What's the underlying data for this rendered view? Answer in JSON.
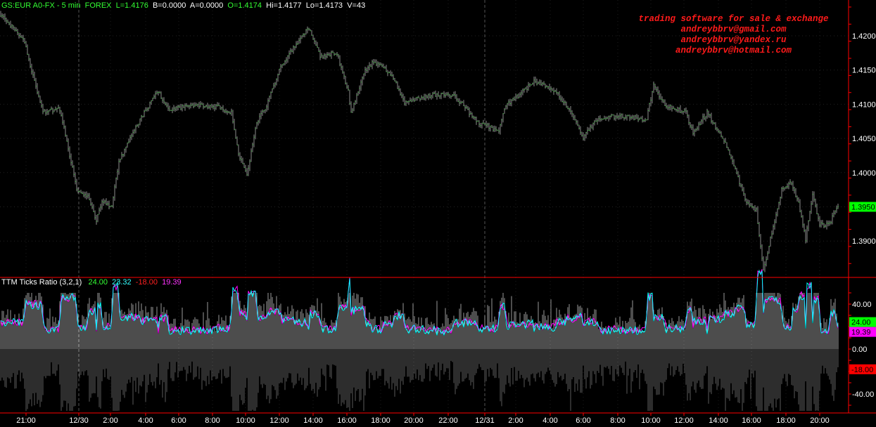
{
  "header": {
    "symbol": "GS:EUR A0-FX - 5 min",
    "market": "FOREX",
    "last": "L=1.4176",
    "bid": "B=0.0000",
    "ask": "A=0.0000",
    "open": "O=1.4174",
    "high": "Hi=1.4177",
    "low": "Lo=1.4173",
    "volume": "V=43"
  },
  "watermark": {
    "line1": "trading software for sale & exchange",
    "line2": "andreybbrv@gmail.com",
    "line3": "andreybbrv@yandex.ru",
    "line4": "andreybbrv@hotmail.com"
  },
  "indicator": {
    "name": "TTM Ticks Ratio (3,2,1)",
    "v1": "24.00",
    "v2": "23.32",
    "v3": "-18.00",
    "v4": "19.39"
  },
  "colors": {
    "axis": "#ff0000",
    "bars": "#8c8c8c",
    "bar_ticks": "#33cc33",
    "line1": "#00ffff",
    "line2": "#ff00ff",
    "last_badge": "#00ff00",
    "neg_badge": "#ff0000"
  },
  "chart_data": [
    {
      "type": "ohlc",
      "ylim": [
        1.385,
        1.424
      ],
      "yticks": [
        "1.4200",
        "1.4150",
        "1.4100",
        "1.4050",
        "1.4000",
        "1.3950",
        "1.3900"
      ],
      "last_price": "1.3950",
      "xticks": [
        "21:00",
        "12/30",
        "2:00",
        "4:00",
        "6:00",
        "8:00",
        "10:00",
        "12:00",
        "14:00",
        "16:00",
        "18:00",
        "20:00",
        "22:00",
        "12/31",
        "2:00",
        "4:00",
        "6:00",
        "8:00",
        "10:00",
        "12:00",
        "14:00",
        "16:00",
        "18:00",
        "20:00"
      ],
      "approx_path": [
        [
          "12/29 19:40",
          1.4227
        ],
        [
          "12/29 20:55",
          1.4191
        ],
        [
          "12/29 21:20",
          1.415
        ],
        [
          "12/29 22:00",
          1.4088
        ],
        [
          "12/29 23:00",
          1.4093
        ],
        [
          "12/29 23:40",
          1.4016
        ],
        [
          "12/30 00:00",
          1.3975
        ],
        [
          "12/30 00:40",
          1.3965
        ],
        [
          "12/30 01:10",
          1.3929
        ],
        [
          "12/30 01:30",
          1.396
        ],
        [
          "12/30 02:05",
          1.395
        ],
        [
          "12/30 02:30",
          1.4016
        ],
        [
          "12/30 03:45",
          1.4078
        ],
        [
          "12/30 04:50",
          1.4119
        ],
        [
          "12/30 05:25",
          1.4093
        ],
        [
          "12/30 07:05",
          1.4098
        ],
        [
          "12/30 08:20",
          1.4096
        ],
        [
          "12/30 09:10",
          1.4088
        ],
        [
          "12/30 09:35",
          1.4026
        ],
        [
          "12/30 10:05",
          1.3996
        ],
        [
          "12/30 10:40",
          1.4073
        ],
        [
          "12/30 11:15",
          1.4098
        ],
        [
          "12/30 12:05",
          1.4155
        ],
        [
          "12/30 12:55",
          1.4186
        ],
        [
          "12/30 13:45",
          1.4211
        ],
        [
          "12/30 14:25",
          1.417
        ],
        [
          "12/30 15:25",
          1.4175
        ],
        [
          "12/30 16:05",
          1.4119
        ],
        [
          "12/30 16:15",
          1.4088
        ],
        [
          "12/30 17:05",
          1.415
        ],
        [
          "12/30 17:30",
          1.416
        ],
        [
          "12/30 18:10",
          1.4155
        ],
        [
          "12/30 18:45",
          1.4139
        ],
        [
          "12/30 19:25",
          1.4103
        ],
        [
          "12/30 20:15",
          1.4109
        ],
        [
          "12/30 21:15",
          1.4114
        ],
        [
          "12/30 22:20",
          1.4114
        ],
        [
          "12/30 22:55",
          1.4098
        ],
        [
          "12/30 23:45",
          1.4073
        ],
        [
          "12/31 01:00",
          1.4062
        ],
        [
          "12/31 01:25",
          1.4098
        ],
        [
          "12/31 02:15",
          1.4114
        ],
        [
          "12/31 03:05",
          1.4134
        ],
        [
          "12/31 04:20",
          1.4119
        ],
        [
          "12/31 05:00",
          1.4098
        ],
        [
          "12/31 05:35",
          1.4073
        ],
        [
          "12/31 06:00",
          1.4052
        ],
        [
          "12/31 06:50",
          1.4078
        ],
        [
          "12/31 08:05",
          1.4083
        ],
        [
          "12/31 09:45",
          1.4078
        ],
        [
          "12/31 10:10",
          1.4129
        ],
        [
          "12/31 10:50",
          1.4098
        ],
        [
          "12/31 12:05",
          1.4088
        ],
        [
          "12/31 12:30",
          1.4057
        ],
        [
          "12/31 13:20",
          1.4088
        ],
        [
          "12/31 14:20",
          1.4047
        ],
        [
          "12/31 15:00",
          1.4006
        ],
        [
          "12/31 15:35",
          1.396
        ],
        [
          "12/31 16:15",
          1.3944
        ],
        [
          "12/31 16:40",
          1.3857
        ],
        [
          "12/31 17:05",
          1.3903
        ],
        [
          "12/31 17:45",
          1.3975
        ],
        [
          "12/31 18:20",
          1.3985
        ],
        [
          "12/31 18:45",
          1.3955
        ],
        [
          "12/31 19:10",
          1.3903
        ],
        [
          "12/31 19:35",
          1.397
        ],
        [
          "12/31 20:00",
          1.3924
        ],
        [
          "12/31 20:35",
          1.3924
        ],
        [
          "12/31 21:00",
          1.395
        ]
      ]
    },
    {
      "type": "histogram+line",
      "name": "TTM Ticks Ratio (3,2,1)",
      "ylim": [
        -50,
        50
      ],
      "yticks": [
        "40.00",
        "0.00",
        "-40.00"
      ],
      "badges": [
        "24.00",
        "19.39",
        "-18.00"
      ],
      "positive_range": [
        10,
        40
      ],
      "negative_range": [
        -45,
        -5
      ],
      "line_level": [
        12,
        25
      ]
    }
  ]
}
